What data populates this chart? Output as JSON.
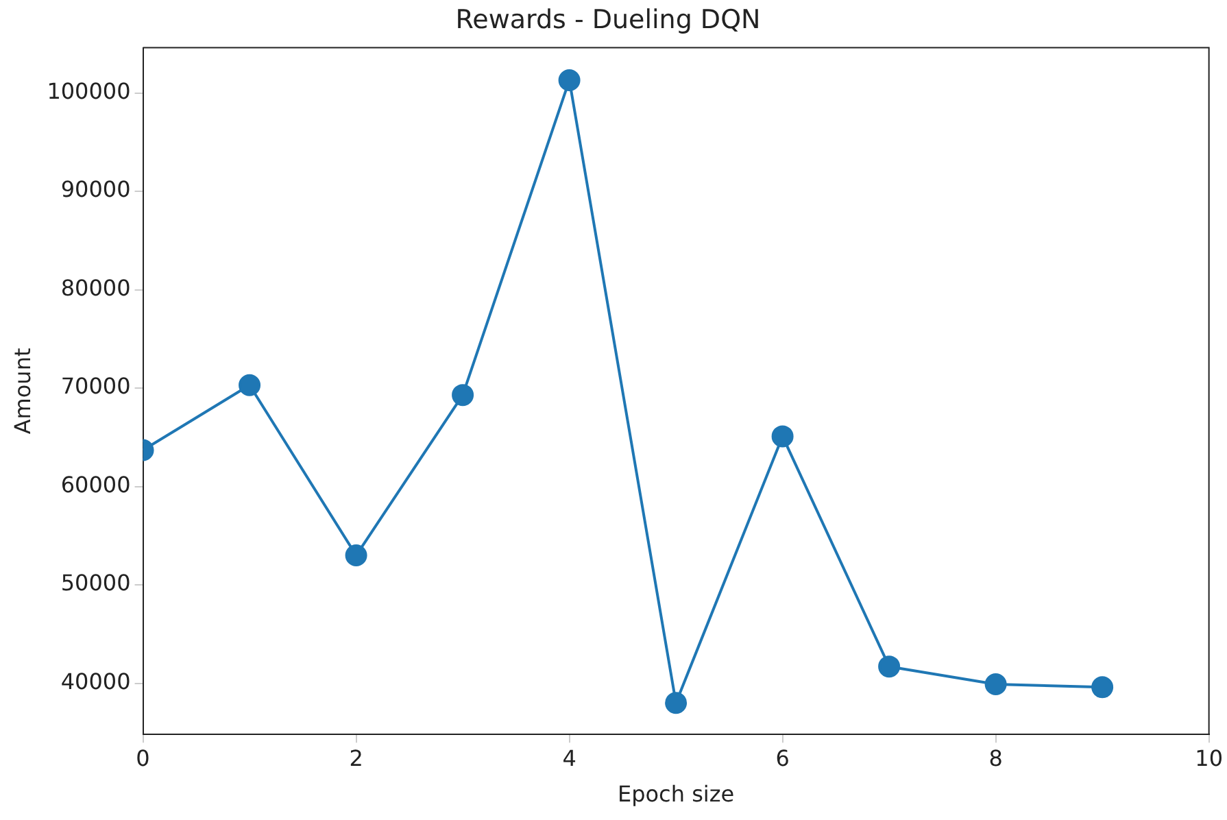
{
  "chart_data": {
    "type": "line",
    "title": "Rewards - Dueling DQN",
    "xlabel": "Epoch size",
    "ylabel": "Amount",
    "x": [
      0,
      1,
      2,
      3,
      4,
      5,
      6,
      7,
      8,
      9
    ],
    "series": [
      {
        "color": "#1f77b4",
        "values": [
          63700,
          70300,
          53000,
          69300,
          101300,
          38000,
          65100,
          41700,
          39900,
          39600
        ]
      }
    ],
    "xlim": [
      0,
      10
    ],
    "xticks": [
      0,
      2,
      4,
      6,
      8,
      10
    ],
    "ylim": [
      34800,
      104600
    ],
    "yticks": [
      40000,
      50000,
      60000,
      70000,
      80000,
      90000,
      100000
    ],
    "marker": "circle",
    "line_style": "solid",
    "grid": false,
    "legend": false
  }
}
